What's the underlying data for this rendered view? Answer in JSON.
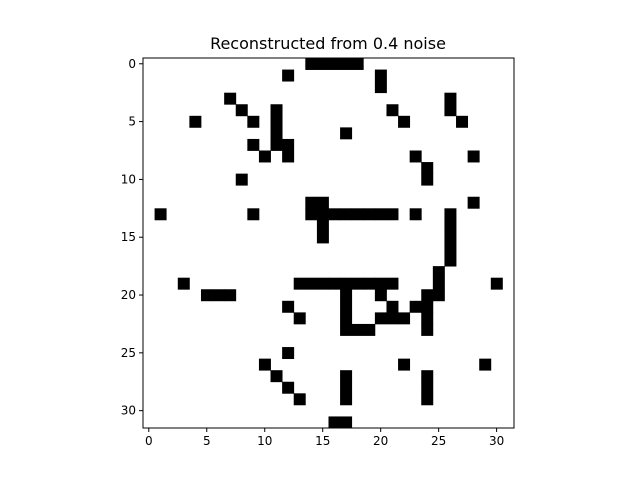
{
  "chart_data": {
    "type": "heatmap",
    "title": "Reconstructed from 0.4 noise",
    "xlabel": "",
    "ylabel": "",
    "rows": 32,
    "cols": 32,
    "xlim": [
      -0.5,
      31.5
    ],
    "ylim": [
      31.5,
      -0.5
    ],
    "x_ticks": [
      0,
      5,
      10,
      15,
      20,
      25,
      30
    ],
    "y_ticks": [
      0,
      5,
      10,
      15,
      20,
      25,
      30
    ],
    "colormap": {
      "1": "#000000",
      "0": "#ffffff"
    },
    "grid": false,
    "values": [
      "00000000000000111110000000000000",
      "00000000000010000000100000000000",
      "00000000000000000000100000000000",
      "00000001000000000000000000100000",
      "00000000100100000000010000100000",
      "00001000010100000000001000010000",
      "00000000000100000100000000000000",
      "00000000010110000000000000000000",
      "00000000001010000000000100001000",
      "00000000000000000000000010000000",
      "00000000100000000000000010000000",
      "00000000000000000000000000000000",
      "00000000000000110000000000001000",
      "01000000010000111111110100100000",
      "00000000000000010000000000100000",
      "00000000000000010000000000100000",
      "00000000000000000000000000100000",
      "00000000000000000000000000100000",
      "00000000000000000000000001000000",
      "00010000000001111111110001000010",
      "00000111000000000100100011000000",
      "00000000000010000100010110000000",
      "00000000000001000100111010000000",
      "00000000000000000111000010000000",
      "00000000000000000000000000000000",
      "00000000000010000000000000000000",
      "00000000001000000000001000000100",
      "00000000000100000100000010000000",
      "00000000000010000100000010000000",
      "00000000000001000100000010000000",
      "00000000000000000000000000000000",
      "00000000000000001100000000000000"
    ]
  }
}
